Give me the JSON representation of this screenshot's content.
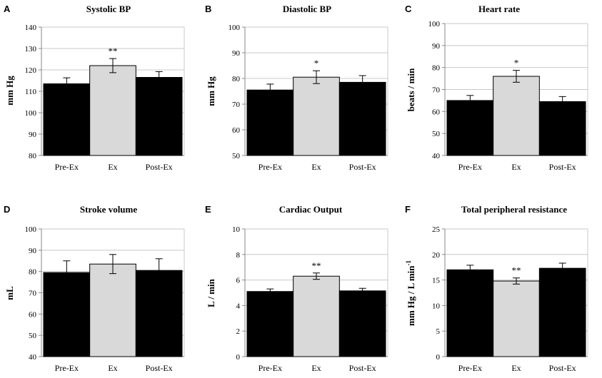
{
  "chart_data": [
    {
      "type": "bar",
      "panel": "A",
      "title": "Systolic BP",
      "ylabel": "mm Hg",
      "ylim": [
        80,
        140
      ],
      "yticks": [
        80,
        90,
        100,
        110,
        120,
        130,
        140
      ],
      "categories": [
        "Pre-Ex",
        "Ex",
        "Post-Ex"
      ],
      "values": [
        113.5,
        122,
        116.5
      ],
      "errors": [
        2.8,
        3.3,
        2.7
      ],
      "significance": [
        "",
        "**",
        ""
      ],
      "colors": [
        "#000000",
        "#d9d9d9",
        "#000000"
      ]
    },
    {
      "type": "bar",
      "panel": "B",
      "title": "Diastolic BP",
      "ylabel": "mm Hg",
      "ylim": [
        50,
        100
      ],
      "yticks": [
        50,
        60,
        70,
        80,
        90,
        100
      ],
      "categories": [
        "Pre-Ex",
        "Ex",
        "Post-Ex"
      ],
      "values": [
        75.5,
        80.5,
        78.5
      ],
      "errors": [
        2.3,
        2.5,
        2.6
      ],
      "significance": [
        "",
        "*",
        ""
      ],
      "colors": [
        "#000000",
        "#d9d9d9",
        "#000000"
      ]
    },
    {
      "type": "bar",
      "panel": "C",
      "title": "Heart rate",
      "ylabel": "beats / min",
      "ylim": [
        40,
        100
      ],
      "yticks": [
        40,
        50,
        60,
        70,
        80,
        90,
        100
      ],
      "categories": [
        "Pre-Ex",
        "Ex",
        "Post-Ex"
      ],
      "values": [
        65,
        76,
        64.5
      ],
      "errors": [
        2.3,
        2.7,
        2.3
      ],
      "significance": [
        "",
        "*",
        ""
      ],
      "colors": [
        "#000000",
        "#d9d9d9",
        "#000000"
      ]
    },
    {
      "type": "bar",
      "panel": "D",
      "title": "Stroke volume",
      "ylabel": "mL",
      "ylim": [
        40,
        100
      ],
      "yticks": [
        40,
        50,
        60,
        70,
        80,
        90,
        100
      ],
      "categories": [
        "Pre-Ex",
        "Ex",
        "Post-Ex"
      ],
      "values": [
        79.5,
        83.5,
        80.5
      ],
      "errors": [
        5.5,
        4.5,
        5.5
      ],
      "significance": [
        "",
        "",
        ""
      ],
      "colors": [
        "#000000",
        "#d9d9d9",
        "#000000"
      ]
    },
    {
      "type": "bar",
      "panel": "E",
      "title": "Cardiac Output",
      "ylabel": "L / min",
      "ylim": [
        0,
        10
      ],
      "yticks": [
        0,
        2,
        4,
        6,
        8,
        10
      ],
      "categories": [
        "Pre-Ex",
        "Ex",
        "Post-Ex"
      ],
      "values": [
        5.1,
        6.3,
        5.15
      ],
      "errors": [
        0.2,
        0.25,
        0.2
      ],
      "significance": [
        "",
        "**",
        ""
      ],
      "colors": [
        "#000000",
        "#d9d9d9",
        "#000000"
      ]
    },
    {
      "type": "bar",
      "panel": "F",
      "title": "Total peripheral resistance",
      "ylabel": "mm Hg / L min",
      "ylabel_superscript": "-1",
      "ylim": [
        0,
        25
      ],
      "yticks": [
        0,
        5,
        10,
        15,
        20,
        25
      ],
      "categories": [
        "Pre-Ex",
        "Ex",
        "Post-Ex"
      ],
      "values": [
        17,
        14.8,
        17.3
      ],
      "errors": [
        0.9,
        0.6,
        1.0
      ],
      "significance": [
        "",
        "**",
        ""
      ],
      "colors": [
        "#000000",
        "#d9d9d9",
        "#000000"
      ]
    }
  ]
}
